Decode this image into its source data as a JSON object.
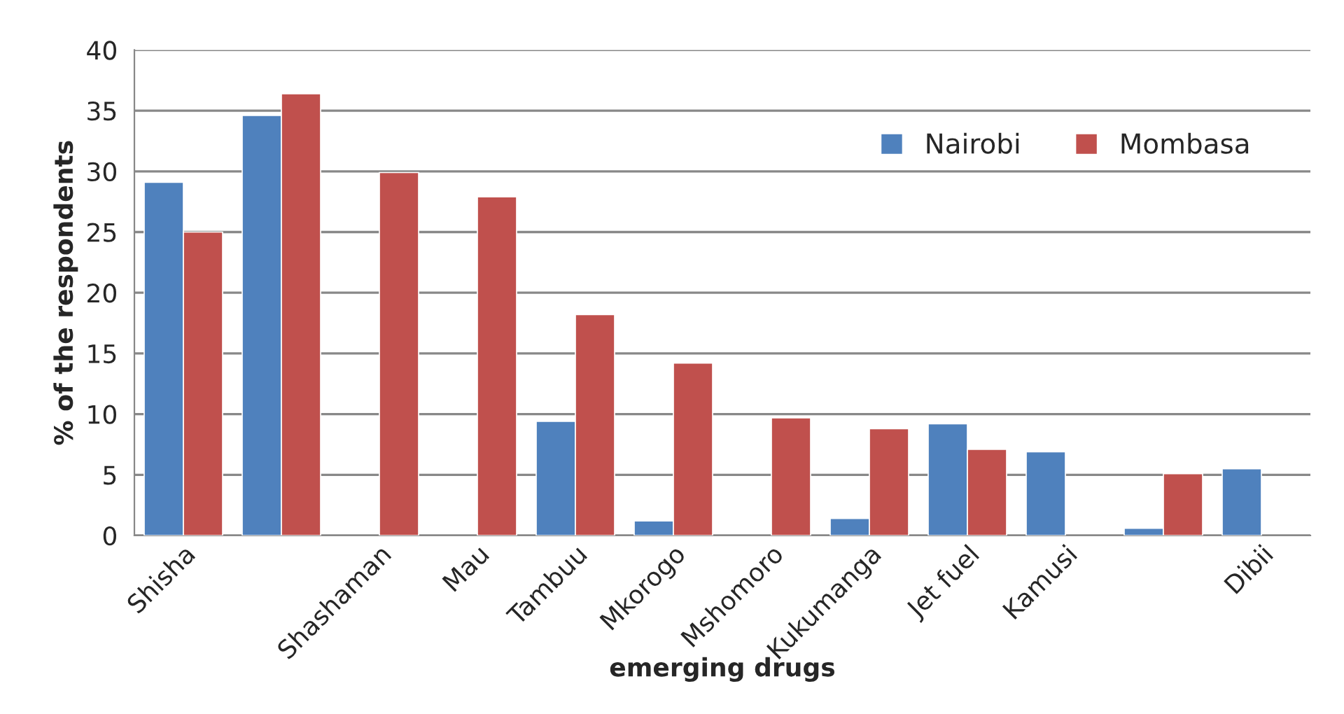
{
  "chart_data": {
    "type": "bar",
    "xlabel": "emerging drugs",
    "ylabel": "% of the respondents",
    "categories": [
      "Shisha",
      null,
      "Shashaman",
      "Mau",
      "Tambuu",
      "Mkorogo",
      "Mshomoro",
      "Kukumanga",
      "Jet fuel",
      "Kamusi",
      null,
      "Dibii"
    ],
    "series": [
      {
        "name": "Nairobi",
        "color": "#4f81bd",
        "values": [
          29.1,
          34.6,
          null,
          null,
          9.4,
          1.2,
          null,
          1.4,
          9.2,
          6.9,
          0.6,
          5.5
        ]
      },
      {
        "name": "Mombasa",
        "color": "#c0504d",
        "values": [
          25,
          36.4,
          29.9,
          27.9,
          18.2,
          14.2,
          9.7,
          8.8,
          7.1,
          null,
          5.1,
          null
        ]
      }
    ],
    "ylim": [
      0,
      40
    ],
    "yticks": [
      0,
      5,
      10,
      15,
      20,
      25,
      30,
      35,
      40
    ],
    "grid": "y",
    "legend": "top right"
  }
}
